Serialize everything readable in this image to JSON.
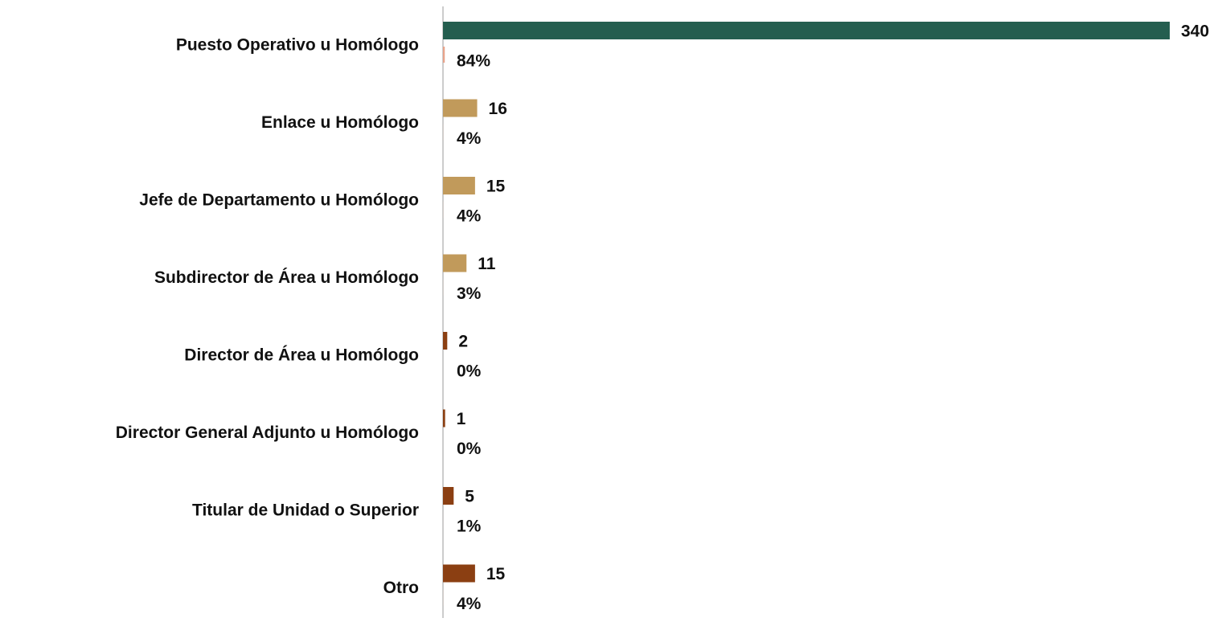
{
  "chart_data": {
    "type": "bar",
    "orientation": "horizontal",
    "categories": [
      "Puesto Operativo u Homólogo",
      "Enlace u Homólogo",
      "Jefe de Departamento u Homólogo",
      "Subdirector de Área u Homólogo",
      "Director de Área u Homólogo",
      "Director General Adjunto u Homólogo",
      "Titular de Unidad o Superior",
      "Otro"
    ],
    "series": [
      {
        "values": [
          340,
          16,
          15,
          11,
          2,
          1,
          5,
          15
        ],
        "colors": [
          "#245e4f",
          "#c19a5b",
          "#c19a5b",
          "#c19a5b",
          "#8b3f12",
          "#8b3f12",
          "#8b3f12",
          "#8b3f12"
        ]
      },
      {
        "values": [
          84,
          4,
          4,
          3,
          0,
          0,
          1,
          4
        ],
        "value_labels": [
          "84%",
          "4%",
          "4%",
          "3%",
          "0%",
          "0%",
          "1%",
          "4%"
        ],
        "color": "#e8a38b",
        "axis": "x2"
      }
    ],
    "xlim": [
      0,
      340
    ],
    "x2lim": [
      0,
      34000
    ]
  }
}
